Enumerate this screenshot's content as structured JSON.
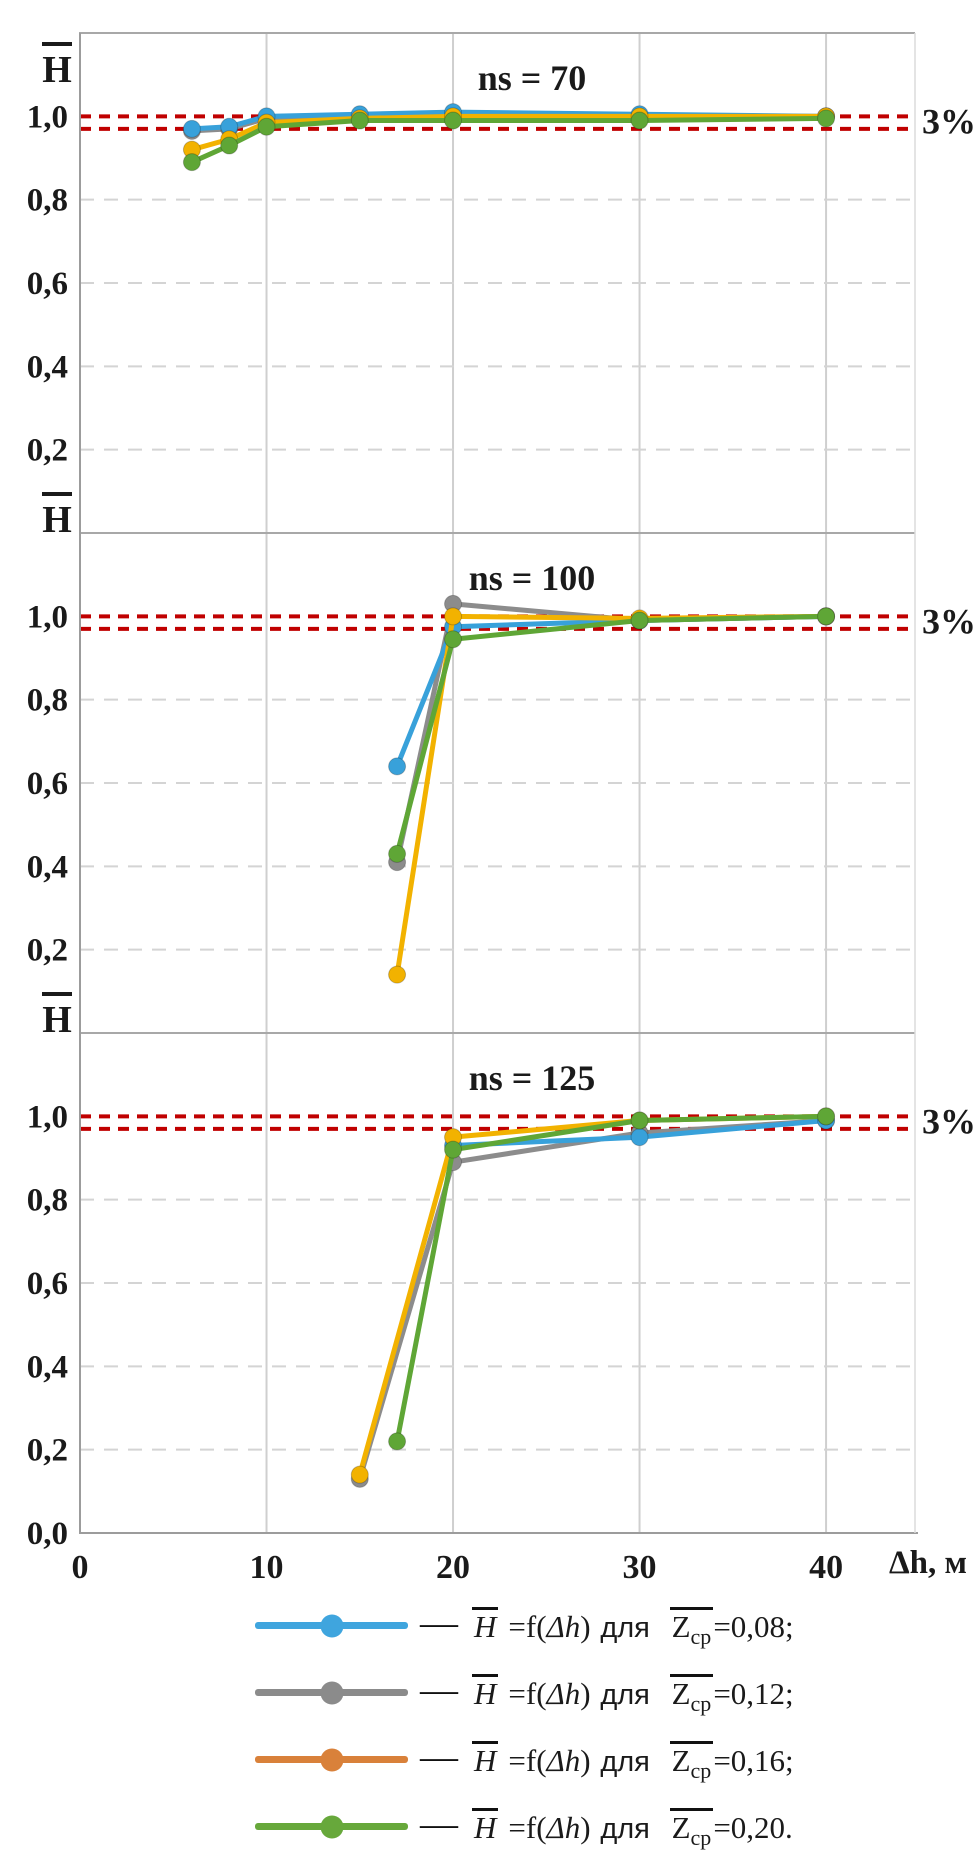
{
  "axis": {
    "x_label": "Δh, м",
    "x_ticks": [
      "0",
      "10",
      "20",
      "30",
      "40"
    ],
    "x_tick_values": [
      0,
      10,
      20,
      30,
      40
    ],
    "y_axis_letter": "H",
    "y_tick_labels": [
      "1,0",
      "0,8",
      "0,6",
      "0,4",
      "0,2"
    ],
    "y_tick_values": [
      1.0,
      0.8,
      0.6,
      0.4,
      0.2
    ],
    "y_zero_label": "0,0",
    "band_label": "3%"
  },
  "colors": {
    "tolerance_dash": "#c00000",
    "grid_h": "#d4d4d4",
    "grid_v": "#cfcfcf",
    "border": "#9c9c9c",
    "text": "#1a1a1a",
    "background": "#ffffff"
  },
  "chart_data": [
    {
      "type": "line",
      "title": "ns = 70",
      "xlabel": "Δh, м",
      "ylabel": "H̄",
      "xlim": [
        0,
        44.5
      ],
      "ylim": [
        0,
        1.2
      ],
      "x_gridlines": [
        10,
        20,
        30,
        40
      ],
      "y_gridlines": [
        0.2,
        0.4,
        0.6,
        0.8
      ],
      "tolerance_lines": [
        1.0,
        0.97
      ],
      "legend_position": "none",
      "series": [
        {
          "name": "Z̄ср = 0,12",
          "color": "#8c8c8c",
          "x": [
            6,
            8,
            10,
            15,
            20,
            30,
            40
          ],
          "y": [
            0.965,
            0.97,
            0.995,
            1.0,
            1.005,
            1.0,
            1.0
          ]
        },
        {
          "name": "Z̄ср = 0,08",
          "color": "#38a1da",
          "x": [
            6,
            8,
            10,
            15,
            20,
            30,
            40
          ],
          "y": [
            0.97,
            0.975,
            1.0,
            1.005,
            1.01,
            1.005,
            1.0
          ]
        },
        {
          "name": "Z̄ср = 0,16",
          "color": "#f2b200",
          "x": [
            6,
            8,
            10,
            15,
            20,
            30,
            40
          ],
          "y": [
            0.92,
            0.945,
            0.985,
            0.995,
            1.0,
            1.0,
            1.0
          ]
        },
        {
          "name": "Z̄ср = 0,20",
          "color": "#5fa636",
          "x": [
            6,
            8,
            10,
            15,
            20,
            30,
            40
          ],
          "y": [
            0.89,
            0.93,
            0.975,
            0.99,
            0.99,
            0.99,
            0.995
          ]
        }
      ]
    },
    {
      "type": "line",
      "title": "ns = 100",
      "xlabel": "Δh, м",
      "ylabel": "H̄",
      "xlim": [
        0,
        44.5
      ],
      "ylim": [
        0,
        1.2
      ],
      "x_gridlines": [
        10,
        20,
        30,
        40
      ],
      "y_gridlines": [
        0.2,
        0.4,
        0.6,
        0.8
      ],
      "tolerance_lines": [
        1.0,
        0.97
      ],
      "legend_position": "none",
      "series": [
        {
          "name": "Z̄ср = 0,12",
          "color": "#8c8c8c",
          "x": [
            17,
            20,
            30,
            40
          ],
          "y": [
            0.41,
            1.03,
            0.99,
            1.0
          ]
        },
        {
          "name": "Z̄ср = 0,08",
          "color": "#38a1da",
          "x": [
            17,
            20,
            30,
            40
          ],
          "y": [
            0.64,
            0.975,
            0.99,
            1.0
          ]
        },
        {
          "name": "Z̄ср = 0,16",
          "color": "#f2b200",
          "x": [
            17,
            20,
            30,
            40
          ],
          "y": [
            0.14,
            1.0,
            0.995,
            1.0
          ]
        },
        {
          "name": "Z̄ср = 0,20",
          "color": "#5fa636",
          "x": [
            17,
            20,
            30,
            40
          ],
          "y": [
            0.43,
            0.945,
            0.99,
            1.0
          ]
        }
      ]
    },
    {
      "type": "line",
      "title": "ns = 125",
      "xlabel": "Δh, м",
      "ylabel": "H̄",
      "xlim": [
        0,
        44.5
      ],
      "ylim": [
        0,
        1.2
      ],
      "x_gridlines": [
        10,
        20,
        30,
        40
      ],
      "y_gridlines": [
        0.2,
        0.4,
        0.6,
        0.8
      ],
      "tolerance_lines": [
        1.0,
        0.97
      ],
      "legend_position": "none",
      "series": [
        {
          "name": "Z̄ср = 0,12",
          "color": "#8c8c8c",
          "x": [
            15,
            20,
            30,
            40
          ],
          "y": [
            0.13,
            0.89,
            0.96,
            0.99
          ]
        },
        {
          "name": "Z̄ср = 0,08",
          "color": "#38a1da",
          "x": [
            20,
            30,
            40
          ],
          "y": [
            0.93,
            0.95,
            0.99
          ]
        },
        {
          "name": "Z̄ср = 0,16",
          "color": "#f2b200",
          "x": [
            15,
            20,
            30,
            40
          ],
          "y": [
            0.14,
            0.95,
            0.99,
            1.0
          ]
        },
        {
          "name": "Z̄ср = 0,20",
          "color": "#5fa636",
          "x": [
            17,
            20,
            30,
            40
          ],
          "y": [
            0.22,
            0.92,
            0.99,
            1.0
          ]
        }
      ]
    }
  ],
  "legend": {
    "dash": "—",
    "items": [
      {
        "color": "#38a1da",
        "legend_color": "#3fa5de",
        "h": "H",
        "f": "=f(",
        "dh": "Δh",
        "close": ")",
        "dlya": "для",
        "z": "Z",
        "zsub": "ср",
        "val": "=0,08;"
      },
      {
        "color": "#8c8c8c",
        "legend_color": "#8b8b8b",
        "h": "H",
        "f": "=f(",
        "dh": "Δh",
        "close": ")",
        "dlya": "для",
        "z": "Z",
        "zsub": "ср",
        "val": "=0,12;"
      },
      {
        "color": "#f2b200",
        "legend_color": "#d9813a",
        "h": "H",
        "f": "=f(",
        "dh": "Δh",
        "close": ")",
        "dlya": "для",
        "z": "Z",
        "zsub": "ср",
        "val": "=0,16;"
      },
      {
        "color": "#5fa636",
        "legend_color": "#67a83b",
        "h": "H",
        "f": "=f(",
        "dh": "Δh",
        "close": ")",
        "dlya": "для",
        "z": "Z",
        "zsub": "ср",
        "val": "=0,20."
      }
    ]
  }
}
